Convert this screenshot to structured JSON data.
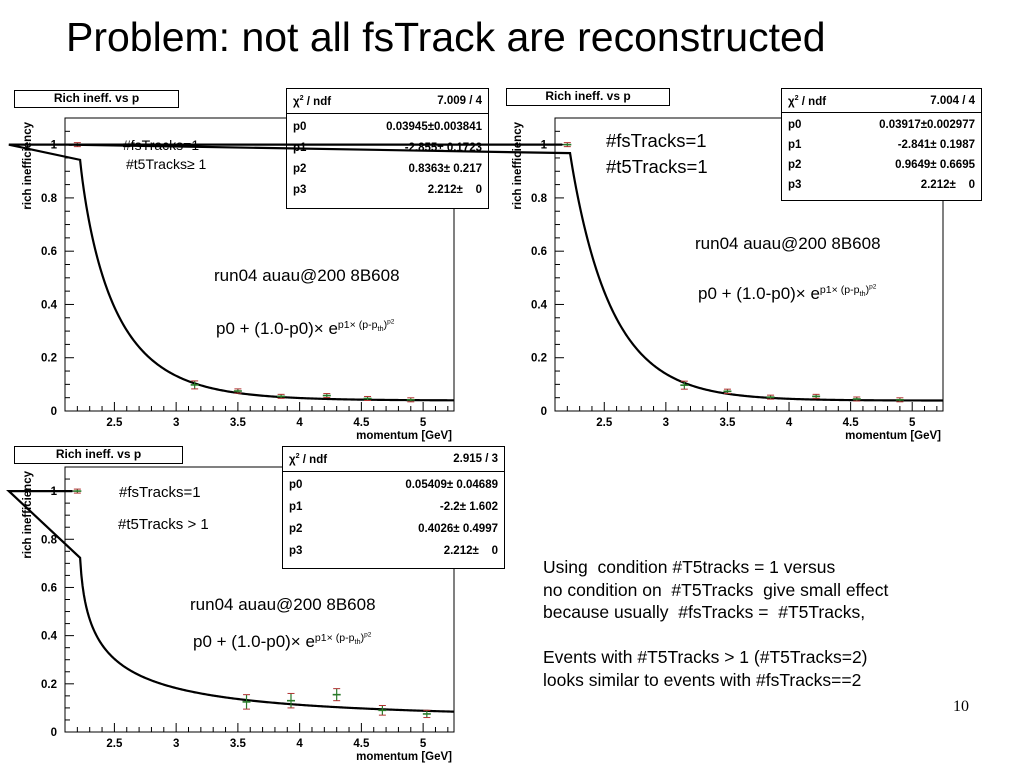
{
  "slide": {
    "title": "Problem: not all fsTrack are reconstructed",
    "notes": "Using  condition #T5tracks = 1 versus\nno condition on  #T5Tracks  give small effect\nbecause usually  #fsTracks =  #T5Tracks,\n\nEvents with #T5Tracks > 1 (#T5Tracks=2)\nlooks similar to events with #fsTracks==2",
    "page_number": "10"
  },
  "labels": {
    "chi2": "χ",
    "chi2_sup": "2",
    "ndf": " / ndf",
    "run": "run04 auau@200 8B608",
    "formula_base": "p0 +  (1.0-p0)× e",
    "formula_exp": "p1× (p-p",
    "formula_sub": "th",
    "formula_close": ")",
    "formula_exp2": "p2"
  },
  "chart_data": [
    {
      "type": "scatter",
      "title": "Rich ineff. vs p",
      "xlabel": "momentum [GeV]",
      "ylabel": "rich inefficiency",
      "xlim": [
        2.1,
        5.25
      ],
      "ylim": [
        0,
        1.1
      ],
      "xticks": [
        "2.5",
        "3",
        "3.5",
        "4",
        "4.5",
        "5"
      ],
      "yticks": [
        "0",
        "0.2",
        "0.4",
        "0.6",
        "0.8",
        "1"
      ],
      "annotations": [
        "#fsTracks=1",
        "#t5Tracks≥ 1"
      ],
      "fit": {
        "chi2_ndf": "7.009 / 4",
        "params": [
          {
            "name": "p0",
            "value": "0.03945",
            "error": "0.003841"
          },
          {
            "name": "p1",
            "value": "-2.855",
            "error": "0.1723"
          },
          {
            "name": "p2",
            "value": "0.8363",
            "error": "0.217"
          },
          {
            "name": "p3",
            "value": "2.212",
            "error": "0"
          }
        ]
      },
      "points": [
        {
          "x": 2.2,
          "y": 1.0,
          "err": 0.003
        },
        {
          "x": 3.15,
          "y": 0.098,
          "err": 0.015
        },
        {
          "x": 3.5,
          "y": 0.075,
          "err": 0.008
        },
        {
          "x": 3.85,
          "y": 0.055,
          "err": 0.006
        },
        {
          "x": 4.22,
          "y": 0.058,
          "err": 0.006
        },
        {
          "x": 4.55,
          "y": 0.047,
          "err": 0.005
        },
        {
          "x": 4.9,
          "y": 0.042,
          "err": 0.005
        }
      ]
    },
    {
      "type": "scatter",
      "title": "Rich ineff. vs p",
      "xlabel": "momentum [GeV]",
      "ylabel": "rich inefficiency",
      "xlim": [
        2.1,
        5.25
      ],
      "ylim": [
        0,
        1.1
      ],
      "xticks": [
        "2.5",
        "3",
        "3.5",
        "4",
        "4.5",
        "5"
      ],
      "yticks": [
        "0",
        "0.2",
        "0.4",
        "0.6",
        "0.8",
        "1"
      ],
      "annotations": [
        "#fsTracks=1",
        "#t5Tracks=1"
      ],
      "fit": {
        "chi2_ndf": "7.004 / 4",
        "params": [
          {
            "name": "p0",
            "value": "0.03917",
            "error": "0.002977"
          },
          {
            "name": "p1",
            "value": "-2.841",
            "error": "0.1987"
          },
          {
            "name": "p2",
            "value": "0.9649",
            "error": "0.6695"
          },
          {
            "name": "p3",
            "value": "2.212",
            "error": "0"
          }
        ]
      },
      "points": [
        {
          "x": 2.2,
          "y": 1.0,
          "err": 0.003
        },
        {
          "x": 3.15,
          "y": 0.097,
          "err": 0.015
        },
        {
          "x": 3.5,
          "y": 0.074,
          "err": 0.008
        },
        {
          "x": 3.85,
          "y": 0.052,
          "err": 0.006
        },
        {
          "x": 4.22,
          "y": 0.055,
          "err": 0.006
        },
        {
          "x": 4.55,
          "y": 0.045,
          "err": 0.005
        },
        {
          "x": 4.9,
          "y": 0.042,
          "err": 0.005
        }
      ]
    },
    {
      "type": "scatter",
      "title": "Rich ineff. vs p",
      "xlabel": "momentum [GeV]",
      "ylabel": "rich inefficiency",
      "xlim": [
        2.1,
        5.25
      ],
      "ylim": [
        0,
        1.1
      ],
      "xticks": [
        "2.5",
        "3",
        "3.5",
        "4",
        "4.5",
        "5"
      ],
      "yticks": [
        "0",
        "0.2",
        "0.4",
        "0.6",
        "0.8",
        "1"
      ],
      "annotations": [
        "#fsTracks=1",
        "#t5Tracks > 1"
      ],
      "fit": {
        "chi2_ndf": "2.915 / 3",
        "params": [
          {
            "name": "p0",
            "value": "0.05409",
            "error": "0.04689"
          },
          {
            "name": "p1",
            "value": "-2.2",
            "error": "1.602"
          },
          {
            "name": "p2",
            "value": "0.4026",
            "error": "0.4997"
          },
          {
            "name": "p3",
            "value": "2.212",
            "error": "0"
          }
        ]
      },
      "points": [
        {
          "x": 2.2,
          "y": 1.0,
          "err": 0.003
        },
        {
          "x": 3.57,
          "y": 0.125,
          "err": 0.03
        },
        {
          "x": 3.93,
          "y": 0.13,
          "err": 0.03
        },
        {
          "x": 4.3,
          "y": 0.155,
          "err": 0.025
        },
        {
          "x": 4.67,
          "y": 0.09,
          "err": 0.02
        },
        {
          "x": 5.03,
          "y": 0.075,
          "err": 0.015
        }
      ]
    }
  ]
}
